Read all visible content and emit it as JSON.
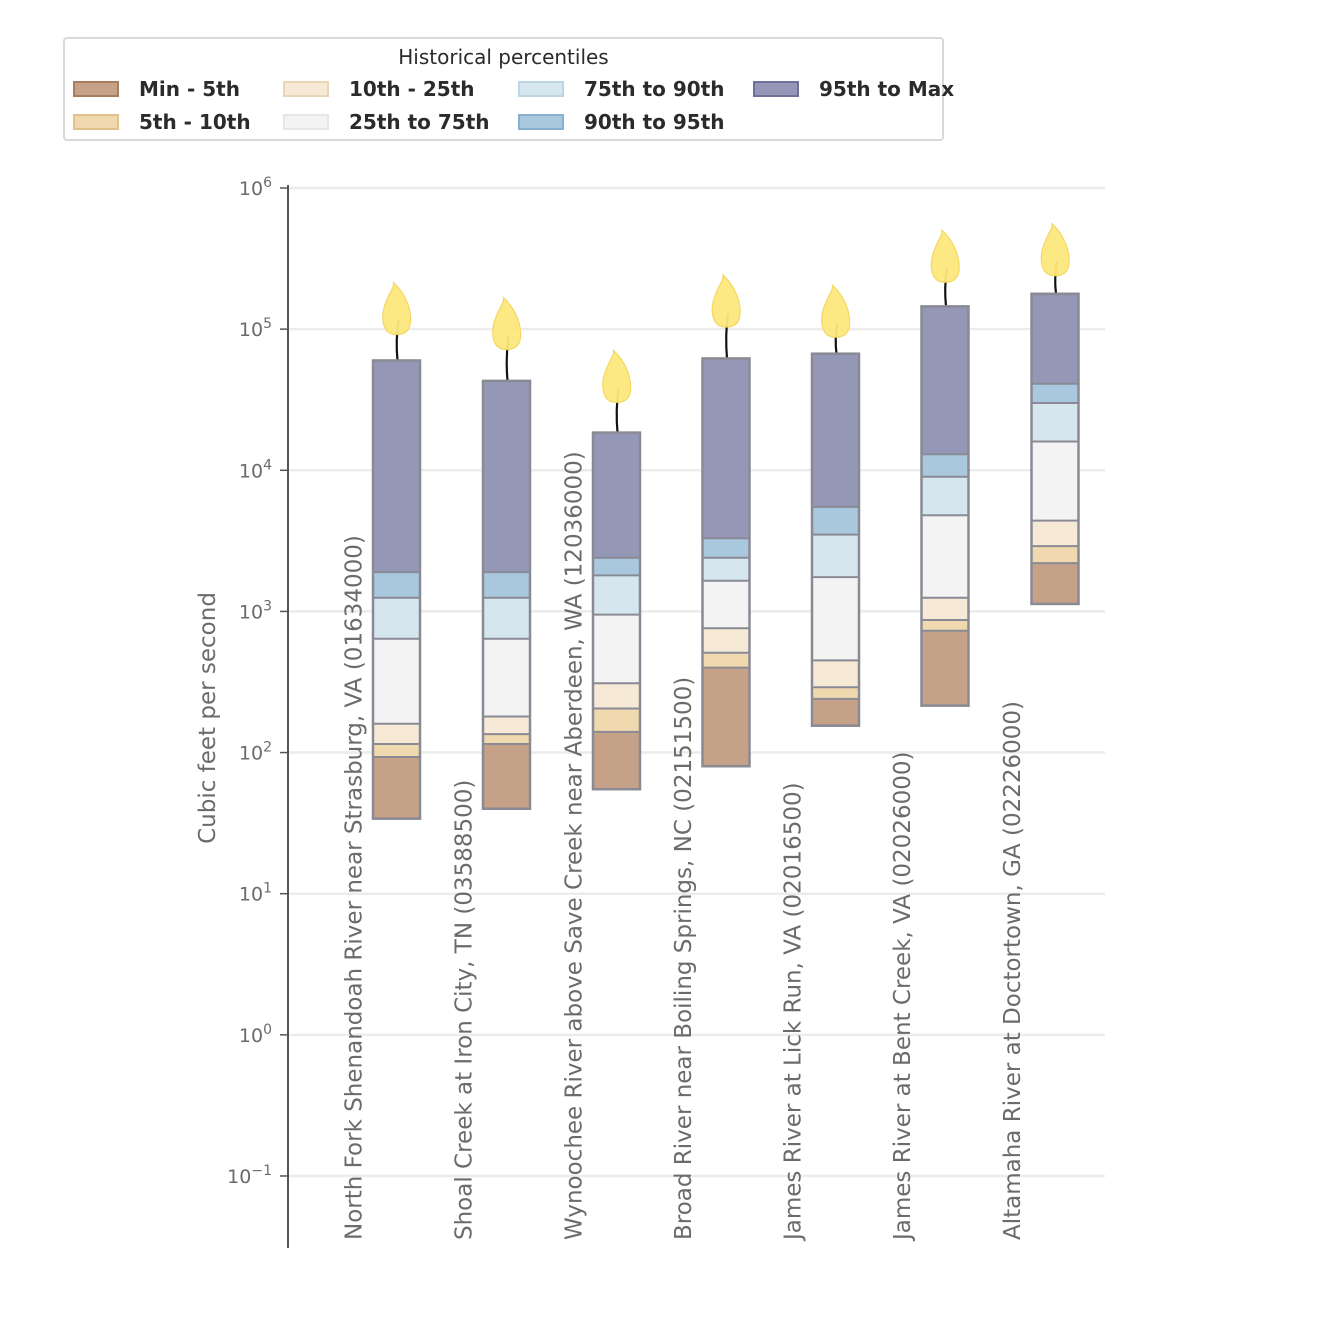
{
  "legend": {
    "title": "Historical percentiles",
    "items": [
      {
        "label": "Min - 5th",
        "fill": "#c5a188",
        "stroke": "#a87c5f"
      },
      {
        "label": "5th - 10th",
        "fill": "#f0d9ae",
        "stroke": "#e2c28a"
      },
      {
        "label": "10th - 25th",
        "fill": "#f6e9d6",
        "stroke": "#ead5b7"
      },
      {
        "label": "25th to 75th",
        "fill": "#f3f3f3",
        "stroke": "#e6e6e6"
      },
      {
        "label": "75th to 90th",
        "fill": "#d6e6ef",
        "stroke": "#bcd6e4"
      },
      {
        "label": "90th to 95th",
        "fill": "#a9c8de",
        "stroke": "#86b0cf"
      },
      {
        "label": "95th to Max",
        "fill": "#9497b5",
        "stroke": "#6f7298"
      }
    ]
  },
  "chart_data": {
    "type": "floating-stacked-bar",
    "ylabel": "Cubic feet per second",
    "yscale": "log",
    "ylim": [
      0.03,
      1000000
    ],
    "yticks": [
      {
        "value": 0.1,
        "base": "10",
        "exp": "−1"
      },
      {
        "value": 1,
        "base": "10",
        "exp": "0"
      },
      {
        "value": 10,
        "base": "10",
        "exp": "1"
      },
      {
        "value": 100,
        "base": "10",
        "exp": "2"
      },
      {
        "value": 1000,
        "base": "10",
        "exp": "3"
      },
      {
        "value": 10000,
        "base": "10",
        "exp": "4"
      },
      {
        "value": 100000,
        "base": "10",
        "exp": "5"
      },
      {
        "value": 1000000,
        "base": "10",
        "exp": "6"
      }
    ],
    "percentile_bands": [
      "Min - 5th",
      "5th - 10th",
      "10th - 25th",
      "25th to 75th",
      "75th to 90th",
      "90th to 95th",
      "95th to Max"
    ],
    "sites": [
      {
        "name": "North Fork Shenandoah River near Strasburg, VA (01634000)",
        "bounds": [
          34,
          93,
          115,
          160,
          640,
          1250,
          1900,
          60000
        ],
        "wick_top": 115000
      },
      {
        "name": "Shoal Creek at Iron City, TN (03588500)",
        "bounds": [
          40,
          115,
          135,
          180,
          640,
          1250,
          1900,
          43000
        ],
        "wick_top": 90000
      },
      {
        "name": "Wynoochee River above Save Creek near Aberdeen, WA (12036000)",
        "bounds": [
          55,
          140,
          205,
          310,
          950,
          1800,
          2400,
          18500
        ],
        "wick_top": 38000
      },
      {
        "name": "Broad River near Boiling Springs, NC (02151500)",
        "bounds": [
          80,
          400,
          510,
          760,
          1650,
          2400,
          3300,
          62000
        ],
        "wick_top": 130000
      },
      {
        "name": "James River at Lick Run, VA (02016500)",
        "bounds": [
          155,
          240,
          290,
          450,
          1750,
          3500,
          5500,
          67000
        ],
        "wick_top": 110000
      },
      {
        "name": "James River at Bent Creek, VA (02026000)",
        "bounds": [
          215,
          730,
          870,
          1250,
          4800,
          9000,
          13000,
          145000
        ],
        "wick_top": 270000
      },
      {
        "name": "Altamaha River at Doctortown, GA (02226000)",
        "bounds": [
          1130,
          2200,
          2900,
          4400,
          16000,
          30000,
          41000,
          178000
        ],
        "wick_top": 300000
      }
    ]
  }
}
